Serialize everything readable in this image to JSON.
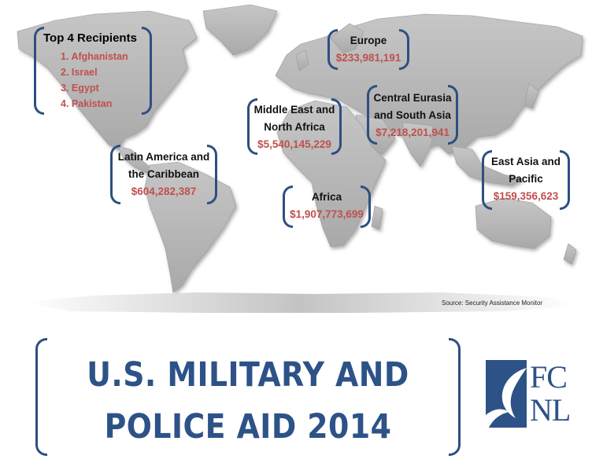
{
  "top_recipients": {
    "title": "Top 4 Recipients",
    "items": [
      {
        "rank": "1.",
        "name": "Afghanistan"
      },
      {
        "rank": "2.",
        "name": "Israel"
      },
      {
        "rank": "3.",
        "name": "Egypt"
      },
      {
        "rank": "4.",
        "name": "Pakistan"
      }
    ]
  },
  "regions": {
    "europe": {
      "name": "Europe",
      "amount": "$233,981,191"
    },
    "mena": {
      "name": "Middle East and\nNorth Africa",
      "amount": "$5,540,145,229"
    },
    "central_eurasia": {
      "name": "Central Eurasia\nand South Asia",
      "amount": "$7,218,201,941"
    },
    "latin_america": {
      "name": "Latin America and\nthe Caribbean",
      "amount": "$604,282,387"
    },
    "africa": {
      "name": "Africa",
      "amount": "$1,907,773,699"
    },
    "east_asia": {
      "name": "East Asia and\nPacific",
      "amount": "$159,356,623"
    }
  },
  "source": "Source: Security Assistance Monitor",
  "title": {
    "line1": "U.S. MILITARY AND",
    "line2": "POLICE AID 2014"
  },
  "logo": {
    "line1": "FC",
    "line2": "NL"
  },
  "colors": {
    "accent_blue": "#2d5287",
    "amount_red": "#c0504d",
    "land_gray": "#b4b4b4"
  }
}
